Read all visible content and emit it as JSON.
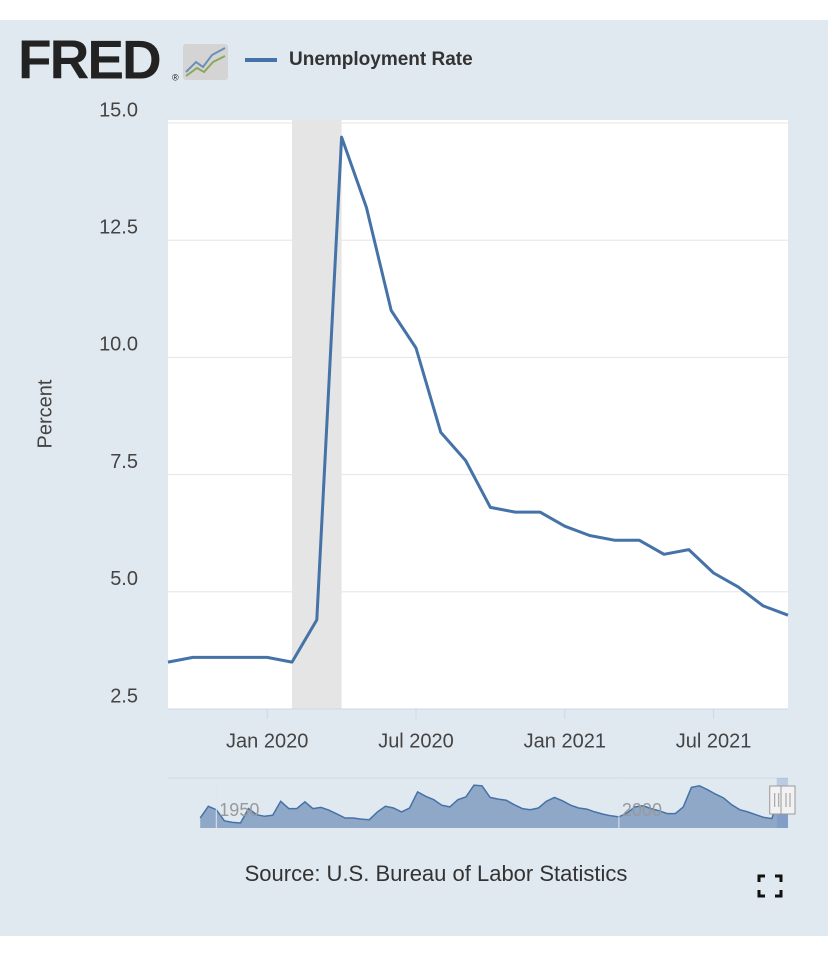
{
  "logo": "FRED",
  "logo_mark": "®",
  "chart_data": {
    "type": "line",
    "ylabel": "Percent",
    "x": [
      "2019-09",
      "2019-10",
      "2019-11",
      "2019-12",
      "2020-01",
      "2020-02",
      "2020-03",
      "2020-04",
      "2020-05",
      "2020-06",
      "2020-07",
      "2020-08",
      "2020-09",
      "2020-10",
      "2020-11",
      "2020-12",
      "2021-01",
      "2021-02",
      "2021-03",
      "2021-04",
      "2021-05",
      "2021-06",
      "2021-07",
      "2021-08",
      "2021-09",
      "2021-10"
    ],
    "series": [
      {
        "name": "Unemployment Rate",
        "color": "#4572a7",
        "values": [
          3.5,
          3.6,
          3.6,
          3.6,
          3.6,
          3.5,
          4.4,
          14.7,
          13.2,
          11.0,
          10.2,
          8.4,
          7.8,
          6.8,
          6.7,
          6.7,
          6.4,
          6.2,
          6.1,
          6.1,
          5.8,
          5.9,
          5.4,
          5.1,
          4.7,
          4.5
        ]
      }
    ],
    "xlim": [
      "2019-09",
      "2021-10"
    ],
    "xticks": [
      {
        "value": "2020-01",
        "label": "Jan 2020"
      },
      {
        "value": "2020-07",
        "label": "Jul 2020"
      },
      {
        "value": "2021-01",
        "label": "Jan 2021"
      },
      {
        "value": "2021-07",
        "label": "Jul 2021"
      }
    ],
    "ylim": [
      2.5,
      15.0
    ],
    "yticks": [
      2.5,
      {
        "value": 5,
        "label": "5.0"
      },
      7.5,
      {
        "value": 10,
        "label": "10.0"
      },
      12.5,
      {
        "value": 15,
        "label": "15.0"
      }
    ],
    "grid": true,
    "recession": [
      "2020-02",
      "2020-04"
    ],
    "recession_color": "#e5e5e5"
  },
  "navigator": {
    "type": "area",
    "color": "#4572a7",
    "x": [
      1948,
      1949,
      1950,
      1951,
      1952,
      1953,
      1954,
      1955,
      1956,
      1957,
      1958,
      1959,
      1960,
      1961,
      1962,
      1963,
      1964,
      1965,
      1966,
      1967,
      1968,
      1969,
      1970,
      1971,
      1972,
      1973,
      1974,
      1975,
      1976,
      1977,
      1978,
      1979,
      1980,
      1981,
      1982,
      1983,
      1984,
      1985,
      1986,
      1987,
      1988,
      1989,
      1990,
      1991,
      1992,
      1993,
      1994,
      1995,
      1996,
      1997,
      1998,
      1999,
      2000,
      2001,
      2002,
      2003,
      2004,
      2005,
      2006,
      2007,
      2008,
      2009,
      2010,
      2011,
      2012,
      2013,
      2014,
      2015,
      2016,
      2017,
      2018,
      2019,
      2020,
      2021
    ],
    "values": [
      3.8,
      5.9,
      5.3,
      3.3,
      3.0,
      2.9,
      5.5,
      4.4,
      4.1,
      4.3,
      6.8,
      5.5,
      5.5,
      6.7,
      5.5,
      5.7,
      5.2,
      4.5,
      3.8,
      3.8,
      3.6,
      3.5,
      4.9,
      5.9,
      5.6,
      4.9,
      5.6,
      8.5,
      7.7,
      7.1,
      6.1,
      5.8,
      7.1,
      7.6,
      9.7,
      9.6,
      7.5,
      7.2,
      7.0,
      6.2,
      5.5,
      5.3,
      5.6,
      6.8,
      7.5,
      6.9,
      6.1,
      5.6,
      5.4,
      4.9,
      4.5,
      4.2,
      4.0,
      4.7,
      5.8,
      6.0,
      5.5,
      5.1,
      4.6,
      4.6,
      5.8,
      9.3,
      9.6,
      8.9,
      8.1,
      7.4,
      6.2,
      5.3,
      4.9,
      4.4,
      3.9,
      3.7,
      8.1,
      5.4
    ],
    "xlim": [
      1944,
      2021
    ],
    "ylim": [
      2,
      11
    ],
    "xticks": [
      1950,
      2000
    ]
  },
  "source": "Source: U.S. Bureau of Labor Statistics"
}
